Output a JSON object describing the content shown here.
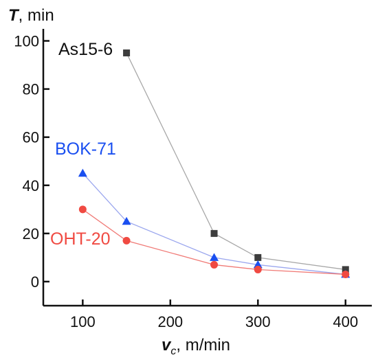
{
  "chart_data": {
    "type": "line",
    "title": "",
    "xlabel": "v",
    "xlabel_sub": "c",
    "xlabel_unit": ", m/min",
    "ylabel": "T",
    "ylabel_unit": ", min",
    "xlim": [
      55,
      430
    ],
    "ylim": [
      -10,
      105
    ],
    "xticks": [
      100,
      200,
      300,
      400
    ],
    "yticks": [
      0,
      20,
      40,
      60,
      80,
      100
    ],
    "grid": false,
    "series": [
      {
        "name": "As15-6",
        "color": "#3d3d3d",
        "line_color": "#a8a8a8",
        "marker": "square",
        "points": [
          {
            "x": 150,
            "y": 95
          },
          {
            "x": 250,
            "y": 20
          },
          {
            "x": 300,
            "y": 10
          },
          {
            "x": 400,
            "y": 5
          }
        ]
      },
      {
        "name": "BOK-71",
        "color": "#1a4ff0",
        "line_color": "#9aa6ee",
        "marker": "triangle",
        "points": [
          {
            "x": 100,
            "y": 45
          },
          {
            "x": 150,
            "y": 25
          },
          {
            "x": 250,
            "y": 10
          },
          {
            "x": 300,
            "y": 7
          },
          {
            "x": 400,
            "y": 3
          }
        ]
      },
      {
        "name": "OHT-20",
        "color": "#f04a42",
        "line_color": "#f07a76",
        "marker": "circle",
        "points": [
          {
            "x": 100,
            "y": 30
          },
          {
            "x": 150,
            "y": 17
          },
          {
            "x": 250,
            "y": 7
          },
          {
            "x": 300,
            "y": 5
          },
          {
            "x": 400,
            "y": 3
          }
        ]
      }
    ]
  }
}
